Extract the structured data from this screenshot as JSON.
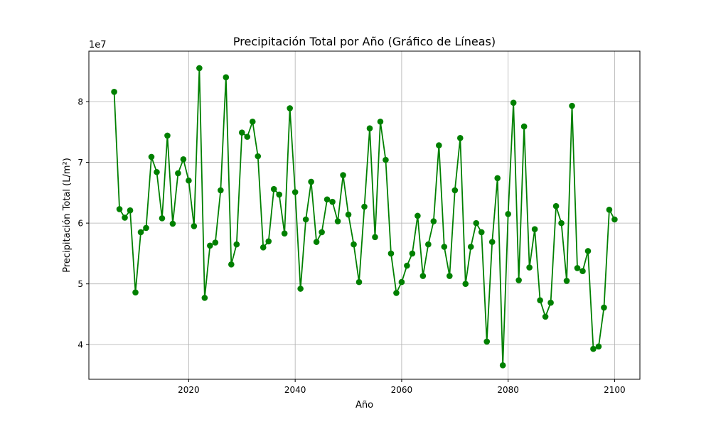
{
  "chart_data": {
    "type": "line",
    "title": "Precipitación Total por Año (Gráfico de Líneas)",
    "xlabel": "Año",
    "ylabel": "Precipitación Total (L/m²)",
    "y_scale_label": "1e7",
    "x_ticks": [
      2020,
      2040,
      2060,
      2080,
      2100
    ],
    "x_tick_labels": [
      "2020",
      "2040",
      "2060",
      "2080",
      "2100"
    ],
    "y_ticks": [
      4,
      5,
      6,
      7,
      8
    ],
    "y_tick_labels": [
      "4",
      "5",
      "6",
      "7",
      "8"
    ],
    "xlim": [
      2001.25,
      2104.75
    ],
    "ylim": [
      3.43,
      8.83
    ],
    "grid": true,
    "line_color": "#008000",
    "marker": "circle",
    "x": [
      2006,
      2007,
      2008,
      2009,
      2010,
      2011,
      2012,
      2013,
      2014,
      2015,
      2016,
      2017,
      2018,
      2019,
      2020,
      2021,
      2022,
      2023,
      2024,
      2025,
      2026,
      2027,
      2028,
      2029,
      2030,
      2031,
      2032,
      2033,
      2034,
      2035,
      2036,
      2037,
      2038,
      2039,
      2040,
      2041,
      2042,
      2043,
      2044,
      2045,
      2046,
      2047,
      2048,
      2049,
      2050,
      2051,
      2052,
      2053,
      2054,
      2055,
      2056,
      2057,
      2058,
      2059,
      2060,
      2061,
      2062,
      2063,
      2064,
      2065,
      2066,
      2067,
      2068,
      2069,
      2070,
      2071,
      2072,
      2073,
      2074,
      2075,
      2076,
      2077,
      2078,
      2079,
      2080,
      2081,
      2082,
      2083,
      2084,
      2085,
      2086,
      2087,
      2088,
      2089,
      2090,
      2091,
      2092,
      2093,
      2094,
      2095,
      2096,
      2097,
      2098,
      2099,
      2100
    ],
    "y": [
      8.16,
      6.23,
      6.09,
      6.21,
      4.86,
      5.85,
      5.92,
      7.09,
      6.84,
      6.08,
      7.44,
      5.99,
      6.82,
      7.05,
      6.7,
      5.95,
      8.55,
      4.77,
      5.63,
      5.68,
      6.54,
      8.4,
      5.32,
      5.65,
      7.49,
      7.42,
      7.67,
      7.1,
      5.6,
      5.7,
      6.56,
      6.47,
      5.83,
      7.89,
      6.51,
      4.92,
      6.06,
      6.68,
      5.69,
      5.85,
      6.39,
      6.35,
      6.03,
      6.79,
      6.14,
      5.65,
      5.03,
      6.27,
      7.56,
      5.77,
      7.67,
      7.04,
      5.5,
      4.85,
      5.03,
      5.3,
      5.5,
      6.12,
      5.13,
      5.65,
      6.03,
      7.28,
      5.61,
      5.13,
      6.54,
      7.4,
      5.0,
      5.61,
      6.0,
      5.85,
      4.05,
      5.69,
      6.74,
      3.66,
      6.15,
      7.98,
      5.06,
      7.59,
      5.27,
      5.9,
      4.73,
      4.46,
      4.69,
      6.28,
      6.0,
      5.05,
      7.93,
      5.26,
      5.21,
      5.54,
      3.93,
      3.97,
      4.61,
      6.22,
      6.06
    ]
  }
}
